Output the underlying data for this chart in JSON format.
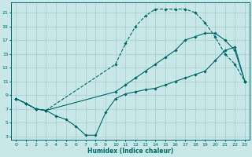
{
  "xlabel": "Humidex (Indice chaleur)",
  "bg_color": "#c8e8e8",
  "grid_color": "#a8cccc",
  "line_color": "#006868",
  "xlim": [
    -0.5,
    23.5
  ],
  "ylim": [
    2.5,
    22.5
  ],
  "xticks": [
    0,
    1,
    2,
    3,
    4,
    5,
    6,
    7,
    8,
    9,
    10,
    11,
    12,
    13,
    14,
    15,
    16,
    17,
    18,
    19,
    20,
    21,
    22,
    23
  ],
  "yticks": [
    3,
    5,
    7,
    9,
    11,
    13,
    15,
    17,
    19,
    21
  ],
  "curve_upper_x": [
    0,
    1,
    2,
    3,
    10,
    11,
    12,
    13,
    14,
    15,
    16,
    17,
    18,
    19,
    20,
    21,
    22,
    23
  ],
  "curve_upper_y": [
    8.5,
    7.8,
    7.0,
    6.8,
    13.5,
    16.5,
    19.0,
    20.5,
    21.5,
    21.5,
    21.5,
    21.5,
    21.0,
    19.5,
    17.5,
    15.0,
    13.5,
    11.0
  ],
  "curve_lower_x": [
    0,
    1,
    2,
    3,
    4,
    5,
    6,
    7,
    8,
    9,
    10,
    11,
    12,
    13,
    14,
    15,
    16,
    17,
    18,
    19,
    20,
    21,
    22,
    23
  ],
  "curve_lower_y": [
    8.5,
    7.8,
    7.0,
    6.8,
    6.0,
    5.5,
    4.5,
    3.2,
    3.2,
    6.5,
    8.5,
    9.2,
    9.5,
    9.8,
    10.0,
    10.5,
    11.0,
    11.5,
    12.0,
    12.5,
    14.0,
    15.5,
    16.0,
    11.0
  ],
  "curve_mid_x": [
    0,
    1,
    2,
    3,
    10,
    11,
    12,
    13,
    14,
    15,
    16,
    17,
    18,
    19,
    20,
    21,
    22,
    23
  ],
  "curve_mid_y": [
    8.5,
    7.8,
    7.0,
    6.8,
    9.5,
    10.5,
    11.5,
    12.5,
    13.5,
    14.5,
    15.5,
    17.0,
    17.5,
    18.0,
    18.0,
    17.0,
    15.5,
    11.0
  ]
}
